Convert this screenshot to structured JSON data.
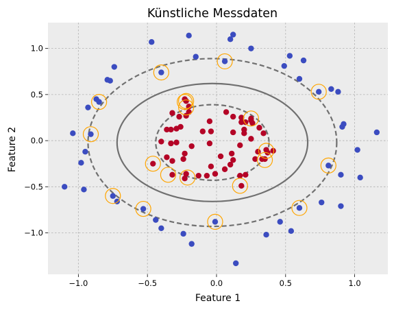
{
  "chart_data": {
    "type": "scatter",
    "title": "Künstliche Messdaten",
    "xlabel": "Feature 1",
    "ylabel": "Feature 2",
    "xlim": [
      -1.22,
      1.24
    ],
    "ylim": [
      -1.45,
      1.28
    ],
    "xticks": [
      -1.0,
      -0.5,
      0.0,
      0.5,
      1.0
    ],
    "yticks": [
      -1.0,
      -0.5,
      0.0,
      0.5,
      1.0
    ],
    "xtick_labels": [
      "−1.0",
      "−0.5",
      "0.0",
      "0.5",
      "1.0"
    ],
    "ytick_labels": [
      "−1.0",
      "−0.5",
      "0.0",
      "0.5",
      "1.0"
    ],
    "grid": true,
    "legend": false,
    "colors": {
      "background": "#ececec",
      "class_0": "#3b4cc0",
      "class_1": "#b40426",
      "support_vector_ring": "#ffa500",
      "contour": "#707070",
      "grid": "#b0b0b0"
    },
    "series": [
      {
        "class": 0,
        "color": "#3b4cc0",
        "points": [
          [
            -0.2,
            1.14
          ],
          [
            0.1,
            1.1
          ],
          [
            0.12,
            1.15
          ],
          [
            0.25,
            1.0
          ],
          [
            -0.47,
            1.07
          ],
          [
            -0.15,
            0.91
          ],
          [
            0.06,
            0.86
          ],
          [
            0.53,
            0.92
          ],
          [
            0.49,
            0.81
          ],
          [
            0.63,
            0.87
          ],
          [
            -0.74,
            0.8
          ],
          [
            -0.79,
            0.66
          ],
          [
            -0.77,
            0.65
          ],
          [
            -0.4,
            0.74
          ],
          [
            0.6,
            0.67
          ],
          [
            0.74,
            0.53
          ],
          [
            0.83,
            0.56
          ],
          [
            0.88,
            0.53
          ],
          [
            -0.87,
            0.45
          ],
          [
            -0.85,
            0.42
          ],
          [
            -0.93,
            0.36
          ],
          [
            -0.91,
            0.07
          ],
          [
            -1.04,
            0.08
          ],
          [
            0.91,
            0.15
          ],
          [
            0.92,
            0.18
          ],
          [
            1.16,
            0.09
          ],
          [
            -0.95,
            -0.12
          ],
          [
            -0.98,
            -0.24
          ],
          [
            1.02,
            -0.1
          ],
          [
            0.81,
            -0.27
          ],
          [
            0.9,
            -0.37
          ],
          [
            1.04,
            -0.4
          ],
          [
            -1.1,
            -0.5
          ],
          [
            -0.96,
            -0.53
          ],
          [
            -0.75,
            -0.6
          ],
          [
            -0.72,
            -0.66
          ],
          [
            -0.53,
            -0.74
          ],
          [
            0.76,
            -0.67
          ],
          [
            0.6,
            -0.73
          ],
          [
            0.9,
            -0.71
          ],
          [
            -0.44,
            -0.86
          ],
          [
            -0.4,
            -0.95
          ],
          [
            -0.01,
            -0.88
          ],
          [
            0.46,
            -0.88
          ],
          [
            0.54,
            -0.98
          ],
          [
            -0.24,
            -1.01
          ],
          [
            -0.18,
            -1.12
          ],
          [
            0.36,
            -1.02
          ],
          [
            0.14,
            -1.33
          ]
        ]
      },
      {
        "class": 1,
        "color": "#b40426",
        "points": [
          [
            -0.23,
            0.45
          ],
          [
            -0.22,
            0.43
          ],
          [
            -0.2,
            0.37
          ],
          [
            -0.32,
            0.3
          ],
          [
            -0.2,
            0.31
          ],
          [
            0.07,
            0.31
          ],
          [
            0.12,
            0.26
          ],
          [
            0.18,
            0.25
          ],
          [
            0.18,
            0.2
          ],
          [
            0.21,
            0.2
          ],
          [
            0.25,
            0.24
          ],
          [
            0.26,
            0.19
          ],
          [
            -0.27,
            0.26
          ],
          [
            -0.22,
            0.27
          ],
          [
            -0.26,
            0.15
          ],
          [
            -0.29,
            0.13
          ],
          [
            -0.33,
            0.12
          ],
          [
            -0.36,
            0.12
          ],
          [
            -0.05,
            0.21
          ],
          [
            0.2,
            0.12
          ],
          [
            0.2,
            0.08
          ],
          [
            0.31,
            0.14
          ],
          [
            0.34,
            0.08
          ],
          [
            0.25,
            0.02
          ],
          [
            0.12,
            0.09
          ],
          [
            -0.04,
            0.1
          ],
          [
            -0.1,
            0.1
          ],
          [
            -0.4,
            -0.01
          ],
          [
            -0.33,
            -0.03
          ],
          [
            -0.29,
            -0.02
          ],
          [
            -0.18,
            -0.06
          ],
          [
            -0.05,
            -0.03
          ],
          [
            0.17,
            -0.05
          ],
          [
            0.36,
            -0.1
          ],
          [
            0.37,
            -0.13
          ],
          [
            0.41,
            -0.11
          ],
          [
            0.35,
            -0.2
          ],
          [
            0.28,
            -0.2
          ],
          [
            0.3,
            -0.12
          ],
          [
            0.03,
            -0.17
          ],
          [
            0.11,
            -0.14
          ],
          [
            0.12,
            -0.21
          ],
          [
            -0.23,
            -0.14
          ],
          [
            -0.24,
            -0.2
          ],
          [
            -0.36,
            -0.18
          ],
          [
            -0.32,
            -0.22
          ],
          [
            -0.46,
            -0.25
          ],
          [
            -0.32,
            -0.37
          ],
          [
            -0.22,
            -0.36
          ],
          [
            -0.23,
            -0.41
          ],
          [
            -0.13,
            -0.38
          ],
          [
            -0.04,
            -0.28
          ],
          [
            -0.01,
            -0.36
          ],
          [
            0.06,
            -0.31
          ],
          [
            0.1,
            -0.26
          ],
          [
            0.17,
            -0.38
          ],
          [
            0.18,
            -0.49
          ],
          [
            0.21,
            -0.37
          ],
          [
            -0.07,
            -0.38
          ],
          [
            0.33,
            -0.2
          ],
          [
            0.25,
            0.22
          ]
        ]
      }
    ],
    "support_vectors": [
      [
        0.06,
        0.86
      ],
      [
        -0.4,
        0.74
      ],
      [
        0.74,
        0.53
      ],
      [
        -0.85,
        0.42
      ],
      [
        -0.91,
        0.07
      ],
      [
        -0.22,
        0.43
      ],
      [
        -0.23,
        0.42
      ],
      [
        -0.22,
        0.36
      ],
      [
        0.25,
        0.24
      ],
      [
        0.36,
        -0.11
      ],
      [
        0.35,
        -0.21
      ],
      [
        -0.46,
        -0.25
      ],
      [
        -0.35,
        -0.37
      ],
      [
        -0.21,
        -0.4
      ],
      [
        0.81,
        -0.27
      ],
      [
        0.17,
        -0.49
      ],
      [
        -0.75,
        -0.6
      ],
      [
        -0.53,
        -0.74
      ],
      [
        0.6,
        -0.73
      ],
      [
        -0.01,
        -0.88
      ]
    ],
    "decision_function": {
      "center": [
        -0.03,
        -0.02
      ],
      "levels": [
        {
          "level": -1,
          "style": "dashed",
          "rx": 0.41,
          "ry": 0.41
        },
        {
          "level": 0,
          "style": "solid",
          "rx": 0.69,
          "ry": 0.64
        },
        {
          "level": 1,
          "style": "dashed",
          "rx": 0.9,
          "ry": 0.91
        }
      ]
    }
  }
}
